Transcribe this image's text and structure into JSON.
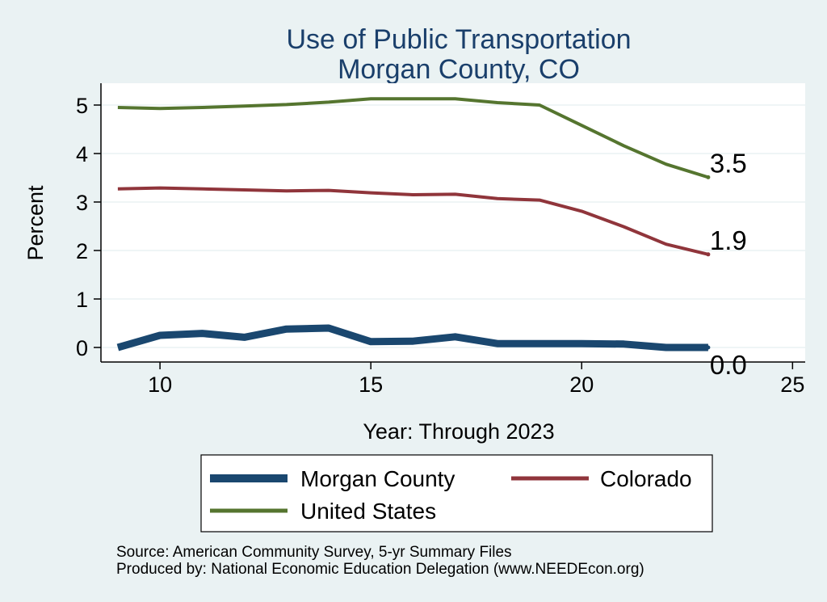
{
  "chart_data": {
    "type": "line",
    "title": [
      "Use of Public Transportation",
      "Morgan County, CO"
    ],
    "xlabel": "Year: Through 2023",
    "ylabel": "Percent",
    "xlim": [
      8.6,
      25.3
    ],
    "ylim": [
      -0.3,
      5.45
    ],
    "x_ticks": [
      10,
      15,
      20,
      25
    ],
    "y_ticks": [
      0,
      1,
      2,
      3,
      4,
      5
    ],
    "grid": true,
    "legend_position": "bottom",
    "x": [
      9,
      10,
      11,
      12,
      13,
      14,
      15,
      16,
      17,
      18,
      19,
      20,
      21,
      22,
      23
    ],
    "series": [
      {
        "name": "Morgan County",
        "color": "#1a476f",
        "stroke_width": 9,
        "values": [
          0.0,
          0.25,
          0.29,
          0.21,
          0.38,
          0.4,
          0.12,
          0.13,
          0.22,
          0.08,
          0.08,
          0.08,
          0.07,
          0.0,
          0.0
        ],
        "end_label": "0.0"
      },
      {
        "name": "Colorado",
        "color": "#90353b",
        "stroke_width": 4,
        "values": [
          3.27,
          3.29,
          3.27,
          3.25,
          3.23,
          3.24,
          3.19,
          3.15,
          3.16,
          3.07,
          3.04,
          2.81,
          2.49,
          2.13,
          1.92
        ],
        "end_label": "1.9"
      },
      {
        "name": "United States",
        "color": "#55752f",
        "stroke_width": 4,
        "values": [
          4.95,
          4.93,
          4.95,
          4.98,
          5.01,
          5.06,
          5.13,
          5.13,
          5.13,
          5.05,
          5.0,
          4.58,
          4.16,
          3.78,
          3.51
        ],
        "end_label": "3.5"
      }
    ]
  },
  "footer": {
    "source": "Source: American Community Survey, 5-yr Summary Files",
    "produced": "Produced by: National Economic Education Delegation (www.NEEDEcon.org)"
  }
}
